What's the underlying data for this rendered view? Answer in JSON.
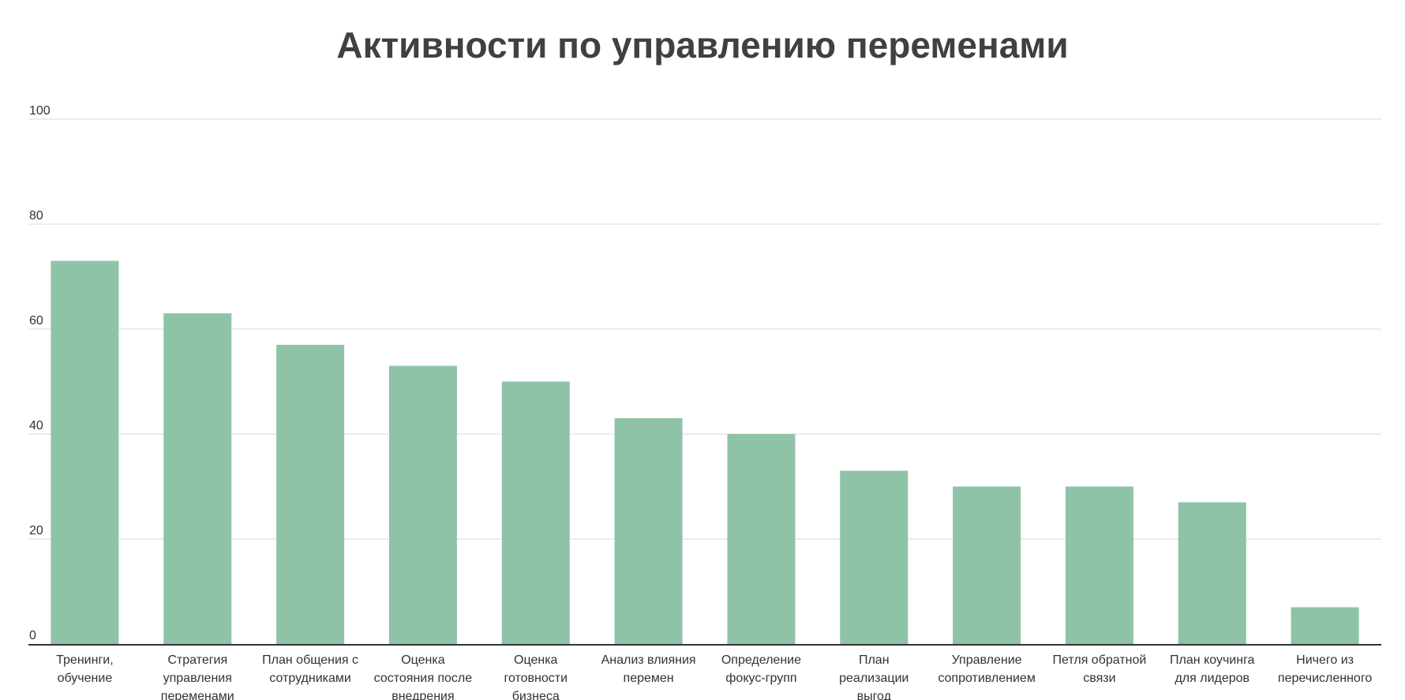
{
  "chart_data": {
    "type": "bar",
    "title": "Активности по управлению переменами",
    "xlabel": "",
    "ylabel": "",
    "ylim": [
      0,
      100
    ],
    "yticks": [
      0,
      20,
      40,
      60,
      80,
      100
    ],
    "grid": true,
    "legend": "none",
    "bar_color": "#8fc3a7",
    "categories": [
      [
        "Тренинги,",
        "обучение"
      ],
      [
        "Стратегия",
        "управления",
        "переменами"
      ],
      [
        "План общения с",
        "сотрудниками"
      ],
      [
        "Оценка",
        "состояния после",
        "внедрения"
      ],
      [
        "Оценка",
        "готовности",
        "бизнеса"
      ],
      [
        "Анализ влияния",
        "перемен"
      ],
      [
        "Определение",
        "фокус-групп"
      ],
      [
        "План",
        "реализации",
        "выгод"
      ],
      [
        "Управление",
        "сопротивлением"
      ],
      [
        "Петля обратной",
        "связи"
      ],
      [
        "План коучинга",
        "для лидеров"
      ],
      [
        "Ничего из",
        "перечисленного"
      ]
    ],
    "values": [
      73,
      63,
      57,
      53,
      50,
      43,
      40,
      33,
      30,
      30,
      27,
      7
    ]
  }
}
